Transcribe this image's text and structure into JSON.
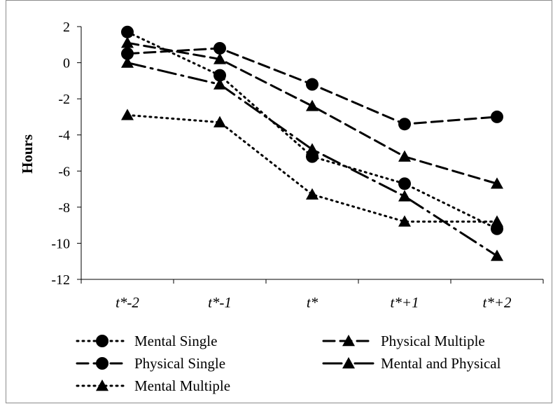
{
  "chart_data": {
    "type": "line",
    "title": "",
    "xlabel": "",
    "ylabel": "Hours",
    "ylim": [
      -12,
      2
    ],
    "yticks": [
      "2",
      "0",
      "-2",
      "-4",
      "-6",
      "-8",
      "-10",
      "-12"
    ],
    "categories": [
      "t*-2",
      "t*-1",
      "t*",
      "t*+1",
      "t*+2"
    ],
    "grid": false,
    "legend_position": "bottom",
    "series": [
      {
        "name": "Mental Single",
        "values": [
          1.7,
          -0.7,
          -5.2,
          -6.7,
          -9.2
        ],
        "line": "dotted",
        "marker": "circle",
        "color": "#000000"
      },
      {
        "name": "Physical Single",
        "values": [
          0.5,
          0.8,
          -1.2,
          -3.4,
          -3.0
        ],
        "line": "dashed",
        "marker": "circle",
        "color": "#000000"
      },
      {
        "name": "Mental Multiple",
        "values": [
          -2.9,
          -3.3,
          -7.3,
          -8.8,
          -8.8
        ],
        "line": "dotted",
        "marker": "triangle",
        "color": "#000000"
      },
      {
        "name": "Physical Multiple",
        "values": [
          1.1,
          0.2,
          -2.4,
          -5.2,
          -6.7
        ],
        "line": "dashed",
        "marker": "triangle",
        "color": "#000000"
      },
      {
        "name": "Mental and Physical",
        "values": [
          0.0,
          -1.2,
          -4.8,
          -7.4,
          -10.7
        ],
        "line": "longdash-dot",
        "marker": "triangle",
        "color": "#000000"
      }
    ]
  }
}
